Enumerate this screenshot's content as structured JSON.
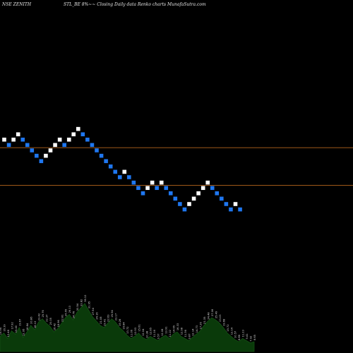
{
  "header": {
    "left": "NSE ZENITH",
    "center": "STL_BE 8%~~ Closing Daily data  Renko  charts MunafaSutra.com"
  },
  "colors": {
    "background": "#000000",
    "up_brick": "#ffffff",
    "down_brick": "#1f77f0",
    "reference_line": "#b5651d",
    "volume_fill": "#0a3a0a",
    "volume_line": "#145214",
    "volume_labels": "#d8d8d8"
  },
  "chart_data": {
    "type": "renko",
    "brick_step": 1,
    "bricks": [
      {
        "dir": "up",
        "level": 2
      },
      {
        "dir": "down",
        "level": 1
      },
      {
        "dir": "up",
        "level": 2
      },
      {
        "dir": "up",
        "level": 3
      },
      {
        "dir": "down",
        "level": 2
      },
      {
        "dir": "down",
        "level": 1
      },
      {
        "dir": "down",
        "level": 0
      },
      {
        "dir": "down",
        "level": -1
      },
      {
        "dir": "down",
        "level": -2
      },
      {
        "dir": "up",
        "level": -1
      },
      {
        "dir": "up",
        "level": 0
      },
      {
        "dir": "up",
        "level": 1
      },
      {
        "dir": "up",
        "level": 2
      },
      {
        "dir": "down",
        "level": 1
      },
      {
        "dir": "up",
        "level": 2
      },
      {
        "dir": "up",
        "level": 3
      },
      {
        "dir": "up",
        "level": 4
      },
      {
        "dir": "down",
        "level": 3
      },
      {
        "dir": "down",
        "level": 2
      },
      {
        "dir": "down",
        "level": 1
      },
      {
        "dir": "down",
        "level": 0
      },
      {
        "dir": "down",
        "level": -1
      },
      {
        "dir": "down",
        "level": -2
      },
      {
        "dir": "down",
        "level": -3
      },
      {
        "dir": "down",
        "level": -4
      },
      {
        "dir": "down",
        "level": -5
      },
      {
        "dir": "up",
        "level": -4
      },
      {
        "dir": "down",
        "level": -5
      },
      {
        "dir": "down",
        "level": -6
      },
      {
        "dir": "down",
        "level": -7
      },
      {
        "dir": "down",
        "level": -8
      },
      {
        "dir": "up",
        "level": -7
      },
      {
        "dir": "up",
        "level": -6
      },
      {
        "dir": "down",
        "level": -7
      },
      {
        "dir": "up",
        "level": -6
      },
      {
        "dir": "down",
        "level": -7
      },
      {
        "dir": "down",
        "level": -8
      },
      {
        "dir": "down",
        "level": -9
      },
      {
        "dir": "down",
        "level": -10
      },
      {
        "dir": "down",
        "level": -11
      },
      {
        "dir": "up",
        "level": -10
      },
      {
        "dir": "up",
        "level": -9
      },
      {
        "dir": "up",
        "level": -8
      },
      {
        "dir": "up",
        "level": -7
      },
      {
        "dir": "up",
        "level": -6
      },
      {
        "dir": "down",
        "level": -7
      },
      {
        "dir": "down",
        "level": -8
      },
      {
        "dir": "down",
        "level": -9
      },
      {
        "dir": "down",
        "level": -10
      },
      {
        "dir": "down",
        "level": -11
      },
      {
        "dir": "up",
        "level": -10
      },
      {
        "dir": "down",
        "level": -11
      }
    ],
    "reference_lines": [
      0.5,
      -6.5
    ],
    "volume": {
      "values": [
        14,
        17,
        12,
        19,
        16,
        22,
        13,
        18,
        24,
        20,
        27,
        30,
        26,
        23,
        18,
        21,
        26,
        31,
        34,
        29,
        36,
        40,
        44,
        38,
        32,
        28,
        24,
        22,
        26,
        30,
        27,
        22,
        19,
        15,
        12,
        14,
        17,
        13,
        11,
        14,
        12,
        10,
        13,
        15,
        12,
        16,
        18,
        14,
        12,
        10,
        13,
        16,
        19,
        24,
        28,
        31,
        29,
        26,
        22,
        17,
        14,
        11,
        9,
        12,
        10,
        8,
        9
      ],
      "labels": [
        "15.94",
        "16.39",
        "13.48",
        "17.92",
        "15.40",
        "19.67",
        "12.95",
        "16.84",
        "20.86",
        "18.13",
        "23.42",
        "25.76",
        "22.37",
        "20.05",
        "16.42",
        "18.96",
        "22.81",
        "26.55",
        "29.13",
        "24.78",
        "30.54",
        "33.82",
        "36.12",
        "31.95",
        "27.54",
        "24.16",
        "21.08",
        "19.41",
        "22.63",
        "25.94",
        "23.17",
        "19.28",
        "16.84",
        "13.72",
        "11.06",
        "12.93",
        "15.61",
        "12.04",
        "10.38",
        "12.85",
        "11.16",
        "9.57",
        "12.08",
        "13.91",
        "11.22",
        "14.65",
        "16.33",
        "12.98",
        "11.36",
        "9.87",
        "12.14",
        "14.73",
        "17.26",
        "21.35",
        "24.48",
        "27.06",
        "25.49",
        "23.03",
        "19.68",
        "15.72",
        "13.14",
        "10.57",
        "8.86",
        "11.23",
        "9.41",
        "7.92",
        "8.65"
      ]
    }
  }
}
